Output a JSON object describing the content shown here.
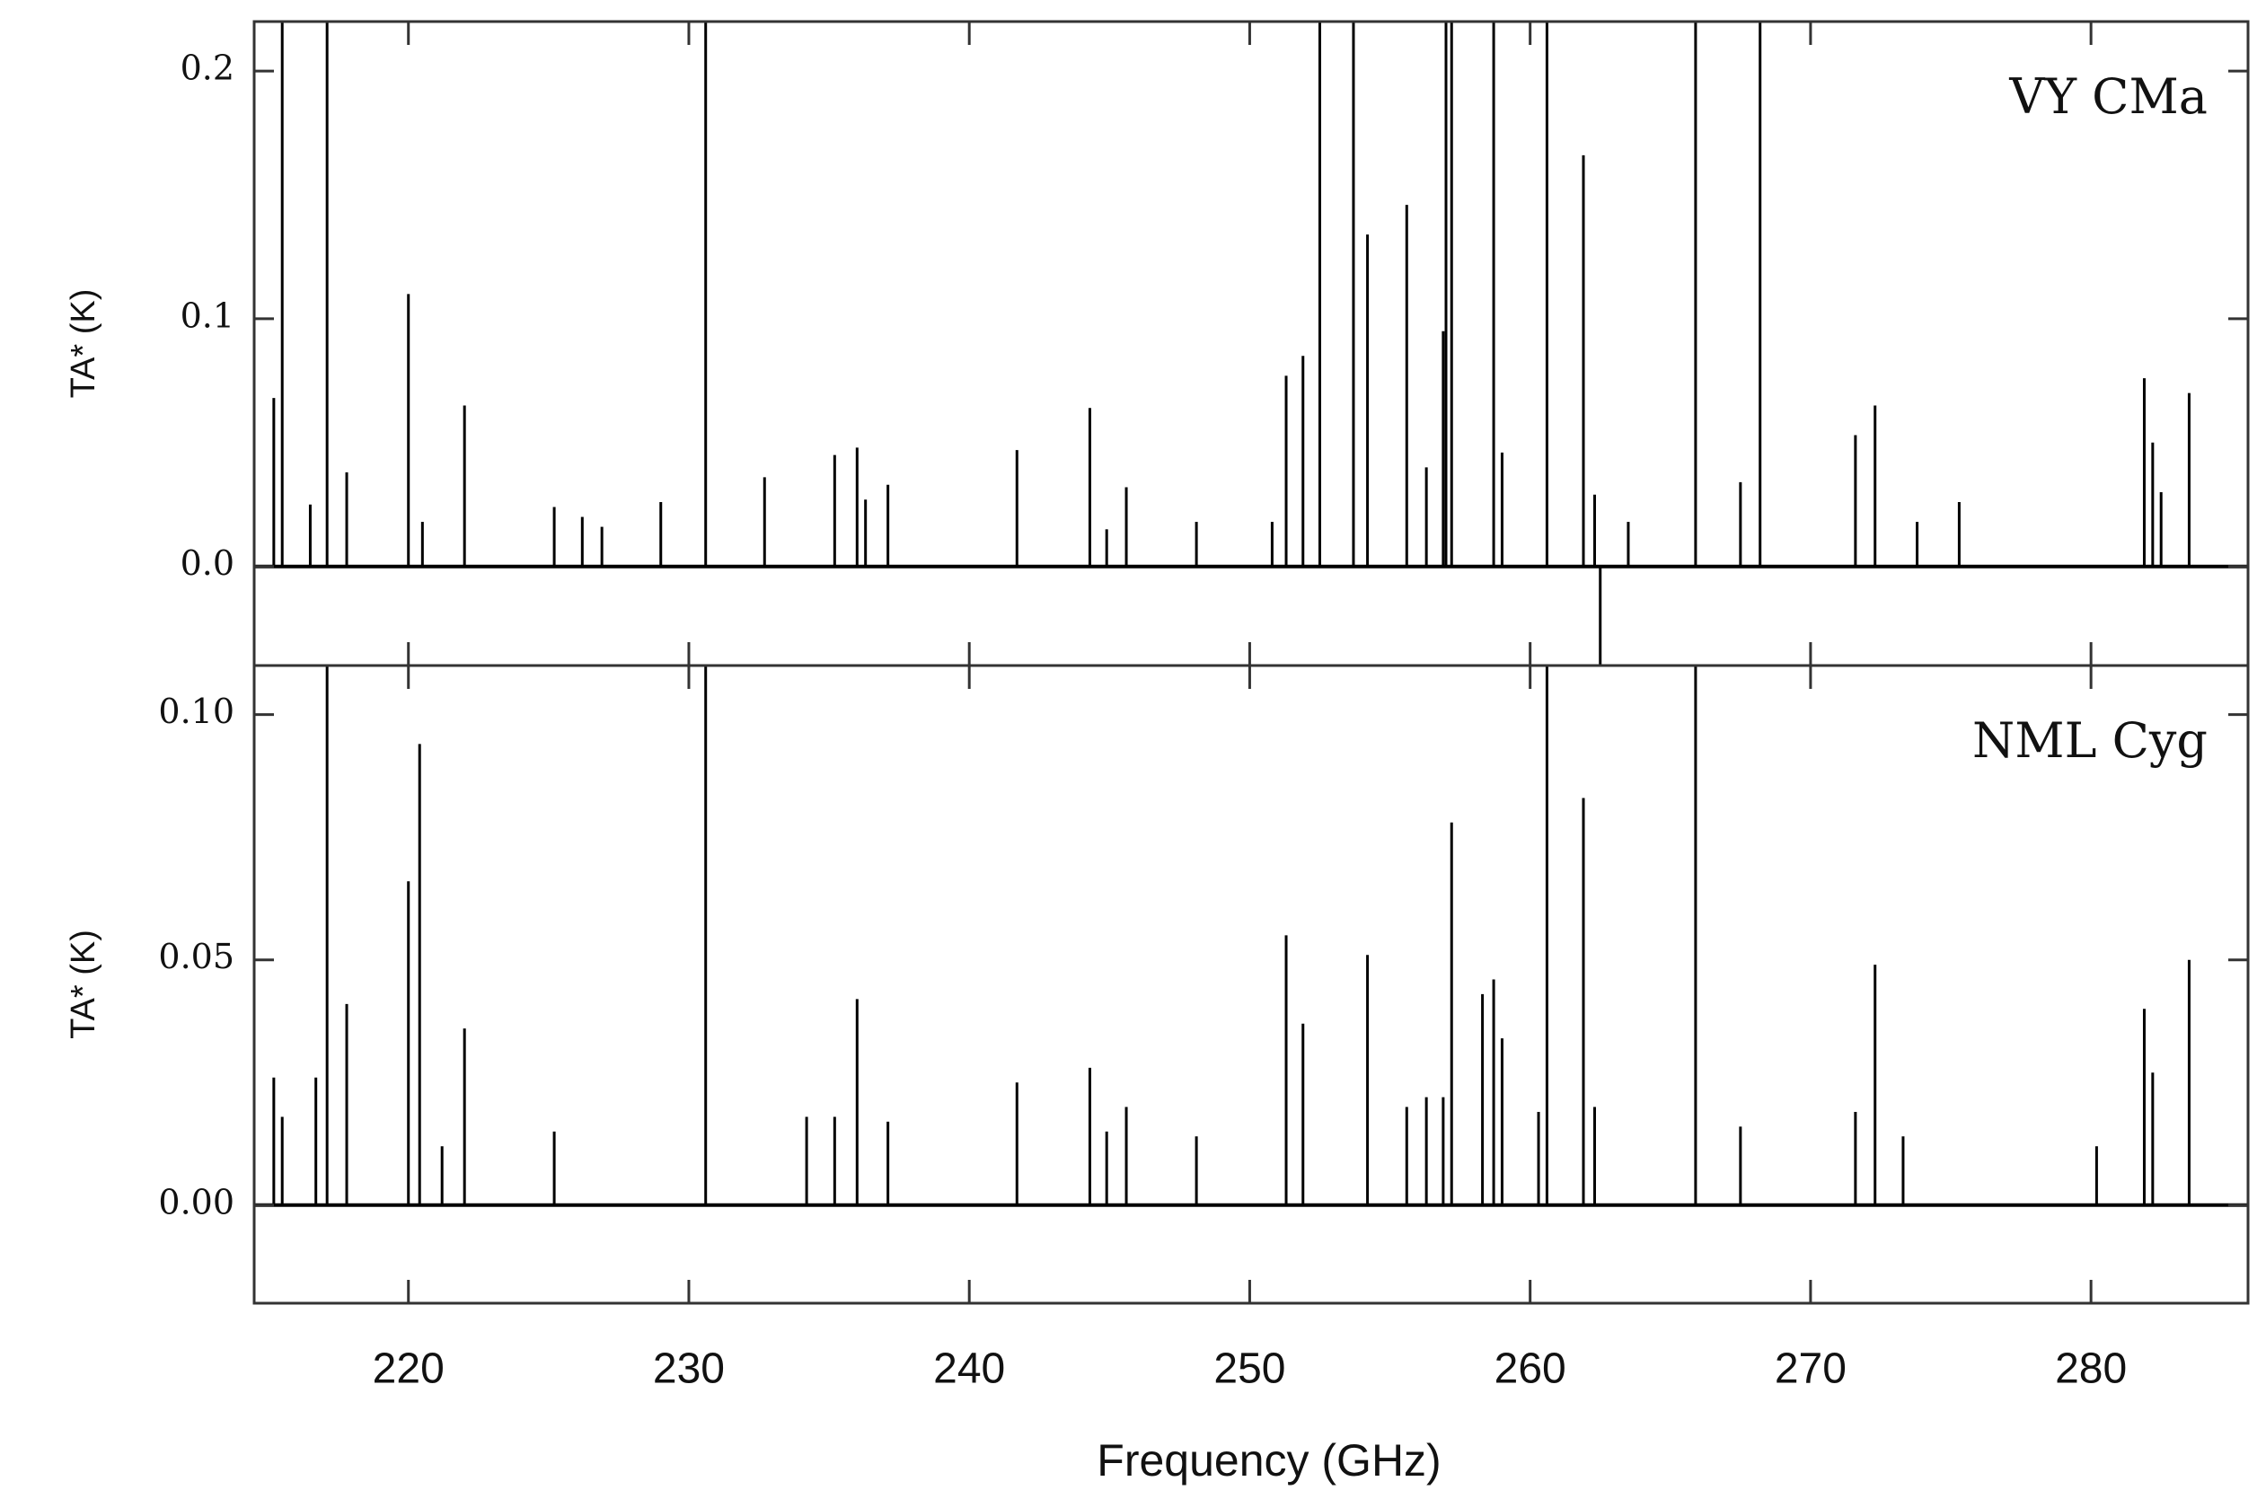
{
  "chart_data": [
    {
      "type": "stem",
      "annotation": "VY CMa",
      "ylabel": "TA* (K)",
      "color": "#000000",
      "xlim": [
        214.5,
        285.6
      ],
      "xticks": [
        220,
        230,
        240,
        250,
        260,
        270,
        280
      ],
      "ylim": [
        -0.04,
        0.22
      ],
      "yticks": [
        {
          "value": 0,
          "label": "0.0"
        },
        {
          "value": 0.1,
          "label": "0.1"
        },
        {
          "value": 0.2,
          "label": "0.2"
        }
      ],
      "x": [
        215.2,
        215.5,
        216.5,
        217.1,
        217.8,
        220.0,
        220.5,
        222.0,
        225.2,
        226.2,
        226.9,
        229.0,
        230.6,
        232.7,
        235.2,
        236.0,
        236.3,
        237.1,
        241.7,
        244.3,
        244.9,
        245.6,
        248.1,
        250.8,
        251.3,
        251.9,
        252.5,
        253.7,
        254.2,
        255.6,
        256.3,
        256.9,
        257.0,
        257.2,
        258.7,
        259.0,
        260.6,
        261.9,
        262.3,
        262.5,
        263.5,
        265.9,
        267.5,
        268.2,
        271.6,
        272.3,
        273.8,
        275.3,
        281.9,
        282.2,
        282.5,
        283.5
      ],
      "values": [
        0.068,
        0.22,
        0.025,
        0.22,
        0.038,
        0.11,
        0.018,
        0.065,
        0.024,
        0.02,
        0.016,
        0.026,
        0.22,
        0.036,
        0.045,
        0.048,
        0.027,
        0.033,
        0.047,
        0.064,
        0.015,
        0.032,
        0.018,
        0.018,
        0.077,
        0.085,
        0.22,
        0.22,
        0.134,
        0.146,
        0.04,
        0.095,
        0.22,
        0.22,
        0.22,
        0.046,
        0.22,
        0.166,
        0.029,
        -0.04,
        0.018,
        0.22,
        0.034,
        0.22,
        0.053,
        0.065,
        0.018,
        0.026,
        0.076,
        0.05,
        0.03,
        0.07
      ]
    },
    {
      "type": "stem",
      "annotation": "NML Cyg",
      "ylabel": "TA* (K)",
      "xlabel": "Frequency (GHz)",
      "color": "#000000",
      "xlim": [
        214.5,
        285.6
      ],
      "xticks": [
        220,
        230,
        240,
        250,
        260,
        270,
        280
      ],
      "ylim": [
        -0.02,
        0.11
      ],
      "yticks": [
        {
          "value": 0,
          "label": "0.00"
        },
        {
          "value": 0.05,
          "label": "0.05"
        },
        {
          "value": 0.1,
          "label": "0.10"
        }
      ],
      "x": [
        215.2,
        215.5,
        216.7,
        217.1,
        217.8,
        220.0,
        220.4,
        221.2,
        222.0,
        225.2,
        230.6,
        234.2,
        235.2,
        236.0,
        237.1,
        241.7,
        244.3,
        244.9,
        245.6,
        248.1,
        251.3,
        251.9,
        254.2,
        255.6,
        256.3,
        256.9,
        257.2,
        258.3,
        258.7,
        259.0,
        260.3,
        260.6,
        261.9,
        262.3,
        265.9,
        267.5,
        271.6,
        272.3,
        273.3,
        280.2,
        281.9,
        282.2,
        283.5
      ],
      "values": [
        0.026,
        0.018,
        0.026,
        0.11,
        0.041,
        0.066,
        0.094,
        0.012,
        0.036,
        0.015,
        0.11,
        0.018,
        0.018,
        0.042,
        0.017,
        0.025,
        0.028,
        0.015,
        0.02,
        0.014,
        0.055,
        0.037,
        0.051,
        0.02,
        0.022,
        0.022,
        0.078,
        0.043,
        0.046,
        0.034,
        0.019,
        0.11,
        0.083,
        0.02,
        0.11,
        0.016,
        0.019,
        0.049,
        0.014,
        0.012,
        0.04,
        0.027,
        0.05
      ]
    }
  ]
}
